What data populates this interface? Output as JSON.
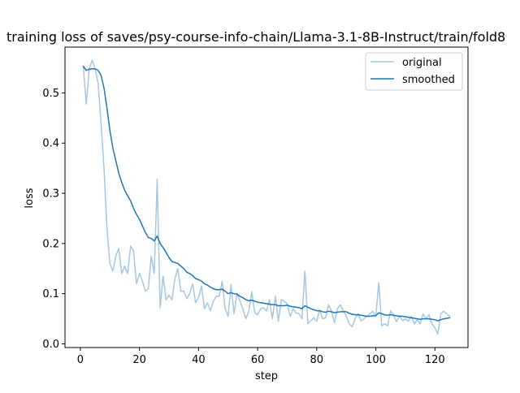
{
  "chart_data": {
    "type": "line",
    "title": "training loss of saves/psy-course-info-chain/Llama-3.1-8B-Instruct/train/fold8",
    "xlabel": "step",
    "ylabel": "loss",
    "xlim": [
      -5.2,
      131.2
    ],
    "ylim": [
      -0.0073,
      0.5913
    ],
    "xticks": [
      0,
      20,
      40,
      60,
      80,
      100,
      120
    ],
    "yticks": [
      0.0,
      0.1,
      0.2,
      0.3,
      0.4,
      0.5
    ],
    "xtick_labels": [
      "0",
      "20",
      "40",
      "60",
      "80",
      "100",
      "120"
    ],
    "ytick_labels": [
      "0.0",
      "0.1",
      "0.2",
      "0.3",
      "0.4",
      "0.5"
    ],
    "grid": false,
    "legend_position": "top-right",
    "series": [
      {
        "name": "original",
        "color": "#a6c7e0",
        "x": [
          1,
          2,
          3,
          4,
          5,
          6,
          7,
          8,
          9,
          10,
          11,
          12,
          13,
          14,
          15,
          16,
          17,
          18,
          19,
          20,
          21,
          22,
          23,
          24,
          25,
          26,
          27,
          28,
          29,
          30,
          31,
          32,
          33,
          34,
          35,
          36,
          37,
          38,
          39,
          40,
          41,
          42,
          43,
          44,
          45,
          46,
          47,
          48,
          49,
          50,
          51,
          52,
          53,
          54,
          55,
          56,
          57,
          58,
          59,
          60,
          61,
          62,
          63,
          64,
          65,
          66,
          67,
          68,
          69,
          70,
          71,
          72,
          73,
          74,
          75,
          76,
          77,
          78,
          79,
          80,
          81,
          82,
          83,
          84,
          85,
          86,
          87,
          88,
          89,
          90,
          91,
          92,
          93,
          94,
          95,
          96,
          97,
          98,
          99,
          100,
          101,
          102,
          103,
          104,
          105,
          106,
          107,
          108,
          109,
          110,
          111,
          112,
          113,
          114,
          115,
          116,
          117,
          118,
          119,
          120,
          121,
          122,
          123,
          124,
          125
        ],
        "y": [
          0.553,
          0.478,
          0.548,
          0.565,
          0.548,
          0.52,
          0.44,
          0.35,
          0.23,
          0.16,
          0.145,
          0.175,
          0.19,
          0.14,
          0.155,
          0.14,
          0.195,
          0.185,
          0.12,
          0.14,
          0.125,
          0.105,
          0.11,
          0.175,
          0.14,
          0.328,
          0.072,
          0.135,
          0.088,
          0.097,
          0.088,
          0.13,
          0.15,
          0.105,
          0.105,
          0.09,
          0.1,
          0.12,
          0.082,
          0.092,
          0.115,
          0.07,
          0.082,
          0.066,
          0.085,
          0.095,
          0.095,
          0.125,
          0.07,
          0.055,
          0.118,
          0.06,
          0.1,
          0.086,
          0.07,
          0.05,
          0.065,
          0.104,
          0.062,
          0.058,
          0.07,
          0.072,
          0.066,
          0.088,
          0.05,
          0.095,
          0.045,
          0.088,
          0.085,
          0.08,
          0.055,
          0.07,
          0.062,
          0.06,
          0.05,
          0.145,
          0.04,
          0.046,
          0.052,
          0.045,
          0.068,
          0.05,
          0.052,
          0.078,
          0.065,
          0.042,
          0.07,
          0.078,
          0.066,
          0.055,
          0.04,
          0.034,
          0.05,
          0.06,
          0.046,
          0.05,
          0.055,
          0.06,
          0.065,
          0.055,
          0.122,
          0.036,
          0.04,
          0.036,
          0.066,
          0.058,
          0.044,
          0.056,
          0.046,
          0.05,
          0.045,
          0.055,
          0.04,
          0.048,
          0.04,
          0.06,
          0.05,
          0.058,
          0.04,
          0.032,
          0.02,
          0.06,
          0.065,
          0.06,
          0.055
        ]
      },
      {
        "name": "smoothed",
        "color": "#1f77b4",
        "x": [
          1,
          2,
          3,
          4,
          5,
          6,
          7,
          8,
          9,
          10,
          11,
          12,
          13,
          14,
          15,
          16,
          17,
          18,
          19,
          20,
          21,
          22,
          23,
          24,
          25,
          26,
          27,
          28,
          29,
          30,
          31,
          32,
          33,
          34,
          35,
          36,
          37,
          38,
          39,
          40,
          41,
          42,
          43,
          44,
          45,
          46,
          47,
          48,
          49,
          50,
          51,
          52,
          53,
          54,
          55,
          56,
          57,
          58,
          59,
          60,
          61,
          62,
          63,
          64,
          65,
          66,
          67,
          68,
          69,
          70,
          71,
          72,
          73,
          74,
          75,
          76,
          77,
          78,
          79,
          80,
          81,
          82,
          83,
          84,
          85,
          86,
          87,
          88,
          89,
          90,
          91,
          92,
          93,
          94,
          95,
          96,
          97,
          98,
          99,
          100,
          101,
          102,
          103,
          104,
          105,
          106,
          107,
          108,
          109,
          110,
          111,
          112,
          113,
          114,
          115,
          116,
          117,
          118,
          119,
          120,
          121,
          122,
          123,
          124,
          125
        ],
        "y": [
          0.553,
          0.545,
          0.547,
          0.548,
          0.548,
          0.545,
          0.535,
          0.51,
          0.47,
          0.425,
          0.39,
          0.365,
          0.34,
          0.322,
          0.306,
          0.295,
          0.285,
          0.27,
          0.258,
          0.248,
          0.235,
          0.222,
          0.212,
          0.21,
          0.205,
          0.215,
          0.2,
          0.192,
          0.182,
          0.172,
          0.164,
          0.162,
          0.16,
          0.155,
          0.15,
          0.143,
          0.14,
          0.136,
          0.13,
          0.128,
          0.125,
          0.12,
          0.117,
          0.113,
          0.11,
          0.108,
          0.108,
          0.109,
          0.105,
          0.1,
          0.102,
          0.1,
          0.099,
          0.095,
          0.092,
          0.088,
          0.086,
          0.087,
          0.085,
          0.083,
          0.082,
          0.081,
          0.08,
          0.079,
          0.078,
          0.078,
          0.076,
          0.076,
          0.076,
          0.077,
          0.075,
          0.074,
          0.073,
          0.072,
          0.07,
          0.076,
          0.073,
          0.07,
          0.068,
          0.066,
          0.066,
          0.064,
          0.063,
          0.065,
          0.064,
          0.062,
          0.063,
          0.064,
          0.064,
          0.064,
          0.061,
          0.059,
          0.058,
          0.058,
          0.057,
          0.056,
          0.055,
          0.055,
          0.056,
          0.056,
          0.062,
          0.06,
          0.058,
          0.057,
          0.058,
          0.057,
          0.056,
          0.055,
          0.055,
          0.054,
          0.053,
          0.052,
          0.051,
          0.05,
          0.049,
          0.05,
          0.05,
          0.05,
          0.049,
          0.048,
          0.046,
          0.048,
          0.05,
          0.051,
          0.052
        ]
      }
    ]
  }
}
